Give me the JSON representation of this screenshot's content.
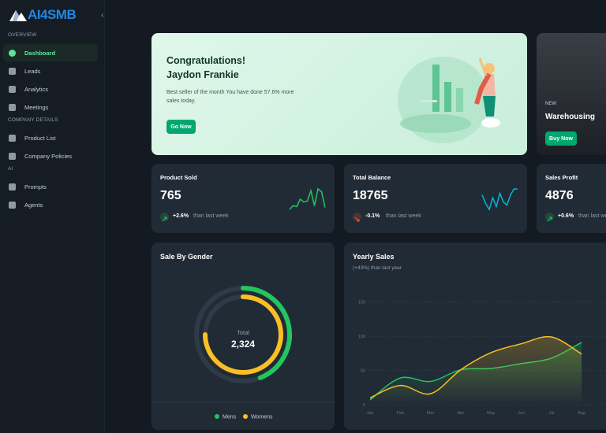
{
  "sidebar": {
    "logo": "AI4SMB",
    "sections": [
      {
        "title": "OVERVIEW",
        "items": [
          "Dashboard",
          "Leads",
          "Analytics",
          "Meetings"
        ]
      },
      {
        "title": "COMPANY DETAILS",
        "items": [
          "Product List",
          "Company Policies"
        ]
      },
      {
        "title": "AI",
        "items": [
          "Prompts",
          "Agents"
        ]
      }
    ]
  },
  "banner": {
    "title": "Congratulations!",
    "name": "Jaydon Frankie",
    "text": "Best seller of the month You have done 57.6% more sales today.",
    "button": "Go Now"
  },
  "promo": {
    "tag": "NEW",
    "title": "Warehousing",
    "button": "Buy Now"
  },
  "stats": [
    {
      "label": "Product Sold",
      "value": "765",
      "change": "+2.6%",
      "note": "than last week",
      "color": "#22c55e",
      "sparkline": [
        22,
        30,
        28,
        44,
        38,
        40,
        62,
        30,
        66,
        60,
        26
      ]
    },
    {
      "label": "Total Balance",
      "value": "18765",
      "change": "-0.1%",
      "note": "than last week",
      "color": "#ff5630",
      "sparkline": [
        50,
        38,
        30,
        46,
        34,
        52,
        40,
        36,
        50,
        58,
        58
      ]
    },
    {
      "label": "Sales Profit",
      "value": "4876",
      "change": "+0.6%",
      "note": "than last week",
      "color": "#22c55e"
    }
  ],
  "chart_data": [
    {
      "type": "radial",
      "title": "Sale By Gender",
      "total_label": "Total",
      "total": "2,324",
      "ylim": [
        0,
        100
      ],
      "series": [
        {
          "name": "Mens",
          "color": "#22c55e",
          "value": 44
        },
        {
          "name": "Womens",
          "color": "#fbbf24",
          "value": 75
        }
      ]
    },
    {
      "type": "line",
      "title": "Yearly Sales",
      "subtitle": "(+43%) than last year",
      "categories": [
        "Jan",
        "Feb",
        "Mar",
        "Apr",
        "May",
        "Jun",
        "Jul",
        "Aug"
      ],
      "ylim": [
        0,
        175
      ],
      "yticks": [
        0,
        50,
        100,
        150
      ],
      "grid": true,
      "series": [
        {
          "color": "#22c55e",
          "values": [
            7,
            39,
            34,
            51,
            53,
            60,
            68,
            91
          ]
        },
        {
          "color": "#fbbf24",
          "values": [
            10,
            28,
            16,
            51,
            76,
            89,
            99,
            74
          ]
        }
      ]
    }
  ]
}
